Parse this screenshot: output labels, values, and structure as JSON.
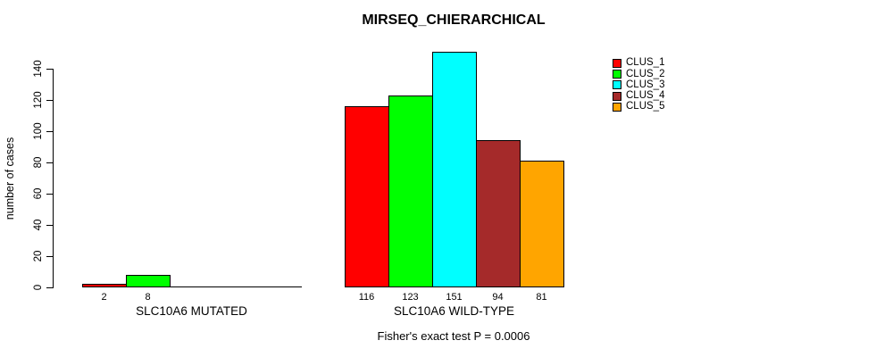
{
  "chart_data": {
    "type": "bar",
    "title": "MIRSEQ_CHIERARCHICAL",
    "ylabel": "number of cases",
    "xlabel": "",
    "ylim": [
      0,
      151
    ],
    "yticks": [
      0,
      20,
      40,
      60,
      80,
      100,
      120,
      140
    ],
    "grid": false,
    "legend_position": "top-right",
    "categories": [
      "SLC10A6 MUTATED",
      "SLC10A6 WILD-TYPE"
    ],
    "series": [
      {
        "name": "CLUS_1",
        "color": "#FF0000",
        "values": [
          2,
          116
        ]
      },
      {
        "name": "CLUS_2",
        "color": "#00FF00",
        "values": [
          8,
          123
        ]
      },
      {
        "name": "CLUS_3",
        "color": "#00FFFF",
        "values": [
          0,
          151
        ]
      },
      {
        "name": "CLUS_4",
        "color": "#A52A2A",
        "values": [
          0,
          94
        ]
      },
      {
        "name": "CLUS_5",
        "color": "#FFA500",
        "values": [
          0,
          81
        ]
      }
    ],
    "bar_value_labels_shown": [
      [
        2,
        8
      ],
      [
        116,
        123,
        151,
        94,
        81
      ]
    ],
    "annotation": "Fisher's exact test P = 0.0006"
  }
}
